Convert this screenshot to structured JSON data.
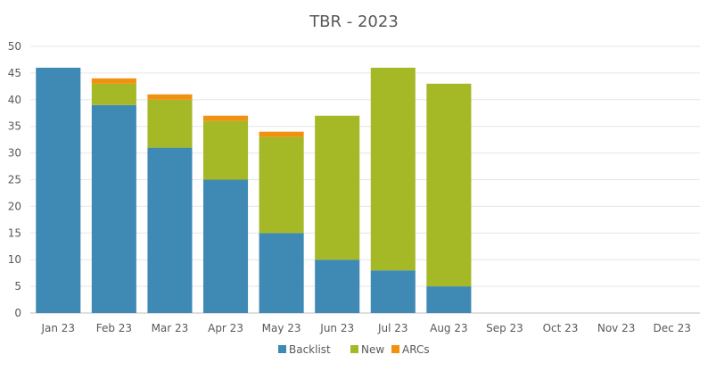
{
  "chart_data": {
    "type": "bar",
    "stacked": true,
    "title": "TBR - 2023",
    "xlabel": "",
    "ylabel": "",
    "categories": [
      "Jan 23",
      "Feb 23",
      "Mar 23",
      "Apr 23",
      "May 23",
      "Jun 23",
      "Jul 23",
      "Aug 23",
      "Sep 23",
      "Oct 23",
      "Nov 23",
      "Dec 23"
    ],
    "ylim": [
      0,
      50
    ],
    "yticks": [
      "0",
      "5",
      "10",
      "15",
      "20",
      "25",
      "30",
      "35",
      "40",
      "45",
      "50"
    ],
    "grid": true,
    "legend_position": "bottom",
    "series": [
      {
        "name": "Backlist",
        "color": "#3f89b5",
        "values": [
          46,
          39,
          31,
          25,
          15,
          10,
          8,
          5,
          0,
          0,
          0,
          0
        ]
      },
      {
        "name": "New",
        "color": "#a5b825",
        "values": [
          0,
          4,
          9,
          11,
          18,
          27,
          38,
          38,
          0,
          0,
          0,
          0
        ]
      },
      {
        "name": "ARCs",
        "color": "#f0910f",
        "values": [
          0,
          1,
          1,
          1,
          1,
          0,
          0,
          0,
          0,
          0,
          0,
          0
        ]
      }
    ]
  }
}
